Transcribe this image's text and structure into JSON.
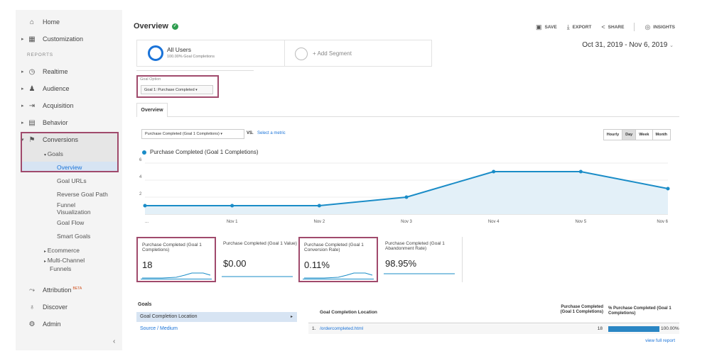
{
  "sidebar": {
    "home": "Home",
    "customization": "Customization",
    "reports_label": "REPORTS",
    "realtime": "Realtime",
    "audience": "Audience",
    "acquisition": "Acquisition",
    "behavior": "Behavior",
    "conversions": "Conversions",
    "goals": "Goals",
    "goal_items": [
      "Overview",
      "Goal URLs",
      "Reverse Goal Path",
      "Funnel",
      "Visualization",
      "Goal Flow",
      "Smart Goals"
    ],
    "ecommerce": "Ecommerce",
    "multichannel": [
      "Multi-Channel",
      "Funnels"
    ],
    "attribution": "Attribution",
    "attribution_badge": "BETA",
    "discover": "Discover",
    "admin": "Admin"
  },
  "header": {
    "title": "Overview",
    "actions": {
      "save": "SAVE",
      "export": "EXPORT",
      "share": "SHARE",
      "insights": "INSIGHTS"
    }
  },
  "segments": {
    "all_users": "All Users",
    "all_users_sub": "100.00% Goal Completions",
    "add_segment": "+ Add Segment"
  },
  "date_range": "Oct 31, 2019 - Nov 6, 2019",
  "goal_option": {
    "label": "Goal Option",
    "value": "Goal 1: Purchase Completed"
  },
  "tabs": {
    "overview": "Overview"
  },
  "metric": {
    "selected": "Purchase Completed (Goal 1 Completions)",
    "vs": "VS.",
    "select_metric": "Select a metric"
  },
  "granularity": {
    "options": [
      "Hourly",
      "Day",
      "Week",
      "Month"
    ],
    "selected": "Day"
  },
  "chart_data": {
    "type": "area",
    "series": [
      {
        "name": "Purchase Completed (Goal 1 Completions)",
        "values": [
          1,
          1,
          1,
          2,
          5,
          5,
          3
        ]
      }
    ],
    "x": [
      "...",
      "Nov 1",
      "Nov 2",
      "Nov 3",
      "Nov 4",
      "Nov 5",
      "Nov 6"
    ],
    "y_ticks": [
      2,
      4,
      6
    ],
    "ylim": [
      0,
      6
    ],
    "color": "#1a8cc7",
    "grid": true
  },
  "scorecards": [
    {
      "title": "Purchase Completed (Goal 1 Completions)",
      "value": "18"
    },
    {
      "title": "Purchase Completed (Goal 1 Value)",
      "value": "$0.00"
    },
    {
      "title": "Purchase Completed (Goal 1 Conversion Rate)",
      "value": "0.11%"
    },
    {
      "title": "Purchase Completed (Goal 1 Abandonment Rate)",
      "value": "98.95%"
    }
  ],
  "goals_table": {
    "heading": "Goals",
    "dimension_selected": "Goal Completion Location",
    "dimension_other": "Source / Medium",
    "col_location": "Goal Completion Location",
    "col_completions": "Purchase Completed (Goal 1 Completions)",
    "col_percent": "% Purchase Completed (Goal 1 Completions)",
    "rows": [
      {
        "num": "1.",
        "location": "/ordercompleted.html",
        "completions": "18",
        "percent": "100.00%"
      }
    ],
    "view_full": "view full report"
  }
}
